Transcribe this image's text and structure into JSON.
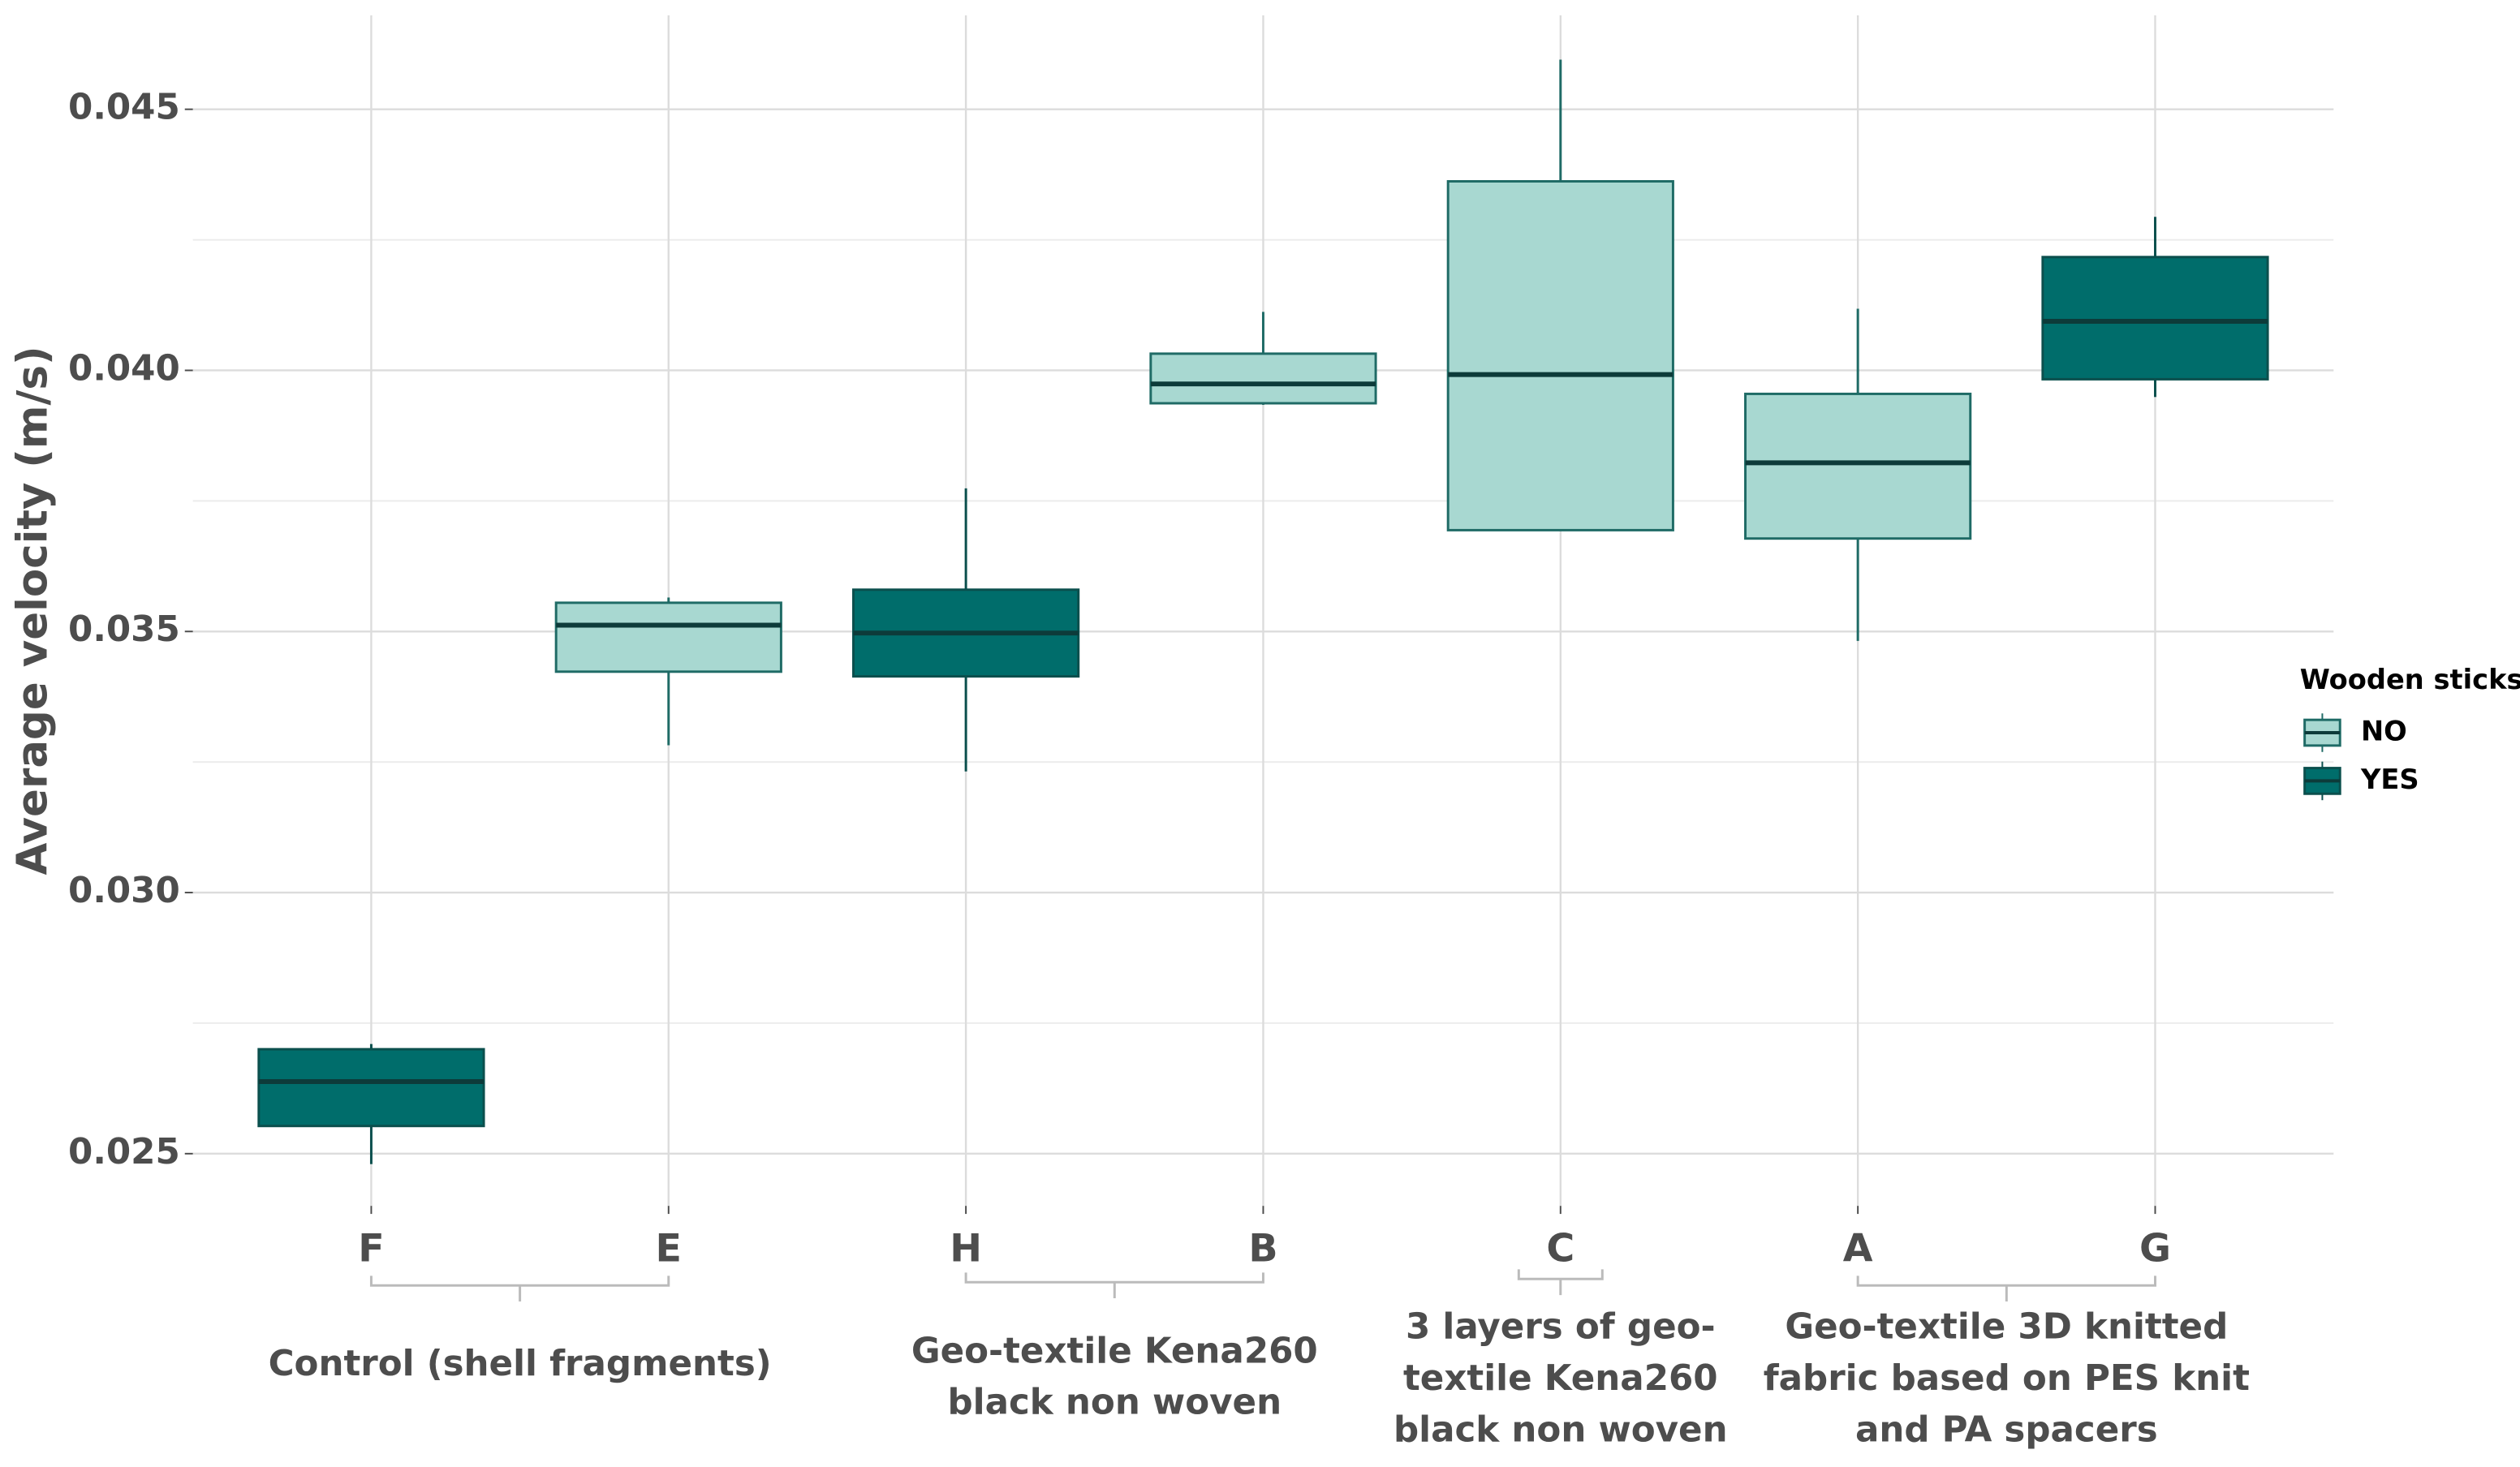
{
  "chart_data": {
    "type": "box",
    "y_label": "Average velocity (m/s)",
    "categories": [
      "F",
      "E",
      "H",
      "B",
      "C",
      "A",
      "G"
    ],
    "series": [
      {
        "name": "NO",
        "color": "#a8d8d1",
        "values": [
          null,
          {
            "min": 0.03282,
            "q1": 0.03423,
            "median": 0.03512,
            "q3": 0.03555,
            "max": 0.03565
          },
          null,
          {
            "min": 0.03934,
            "q1": 0.03937,
            "median": 0.03974,
            "q3": 0.04032,
            "max": 0.04112
          },
          {
            "min": 0.03694,
            "q1": 0.03694,
            "median": 0.03992,
            "q3": 0.04362,
            "max": 0.04595
          },
          {
            "min": 0.03482,
            "q1": 0.03678,
            "median": 0.03823,
            "q3": 0.03955,
            "max": 0.04118
          },
          null
        ]
      },
      {
        "name": "YES",
        "color": "#006d6b",
        "values": [
          {
            "min": 0.0248,
            "q1": 0.02553,
            "median": 0.02638,
            "q3": 0.027,
            "max": 0.0271
          },
          null,
          {
            "min": 0.03232,
            "q1": 0.03414,
            "median": 0.03497,
            "q3": 0.0358,
            "max": 0.03774
          },
          null,
          null,
          null,
          {
            "min": 0.03949,
            "q1": 0.03983,
            "median": 0.04094,
            "q3": 0.04217,
            "max": 0.04294
          }
        ]
      }
    ],
    "ylim": [
      0.024,
      0.0468
    ],
    "yticks": [
      0.025,
      {
        "value": 0.03,
        "label": "0.030"
      },
      0.035,
      {
        "value": 0.04,
        "label": "0.040"
      },
      0.045
    ],
    "y_minor_ticks": [
      0.0275,
      0.0325,
      0.0375,
      0.0425
    ],
    "grid": true,
    "legend": {
      "title": "Wooden sticks",
      "position": "right"
    },
    "groups": [
      {
        "lines": [
          "Control (shell fragments)"
        ],
        "categories": [
          "F",
          "E"
        ]
      },
      {
        "lines": [
          "Geo-textile Kena260",
          "black non woven"
        ],
        "categories": [
          "H",
          "B"
        ]
      },
      {
        "lines": [
          "3 layers of geo-",
          "textile Kena260",
          "black non woven"
        ],
        "categories": [
          "C"
        ]
      },
      {
        "lines": [
          "Geo-textile 3D knitted",
          "fabric based on PES knit",
          "and PA spacers"
        ],
        "categories": [
          "A",
          "G"
        ]
      }
    ]
  }
}
